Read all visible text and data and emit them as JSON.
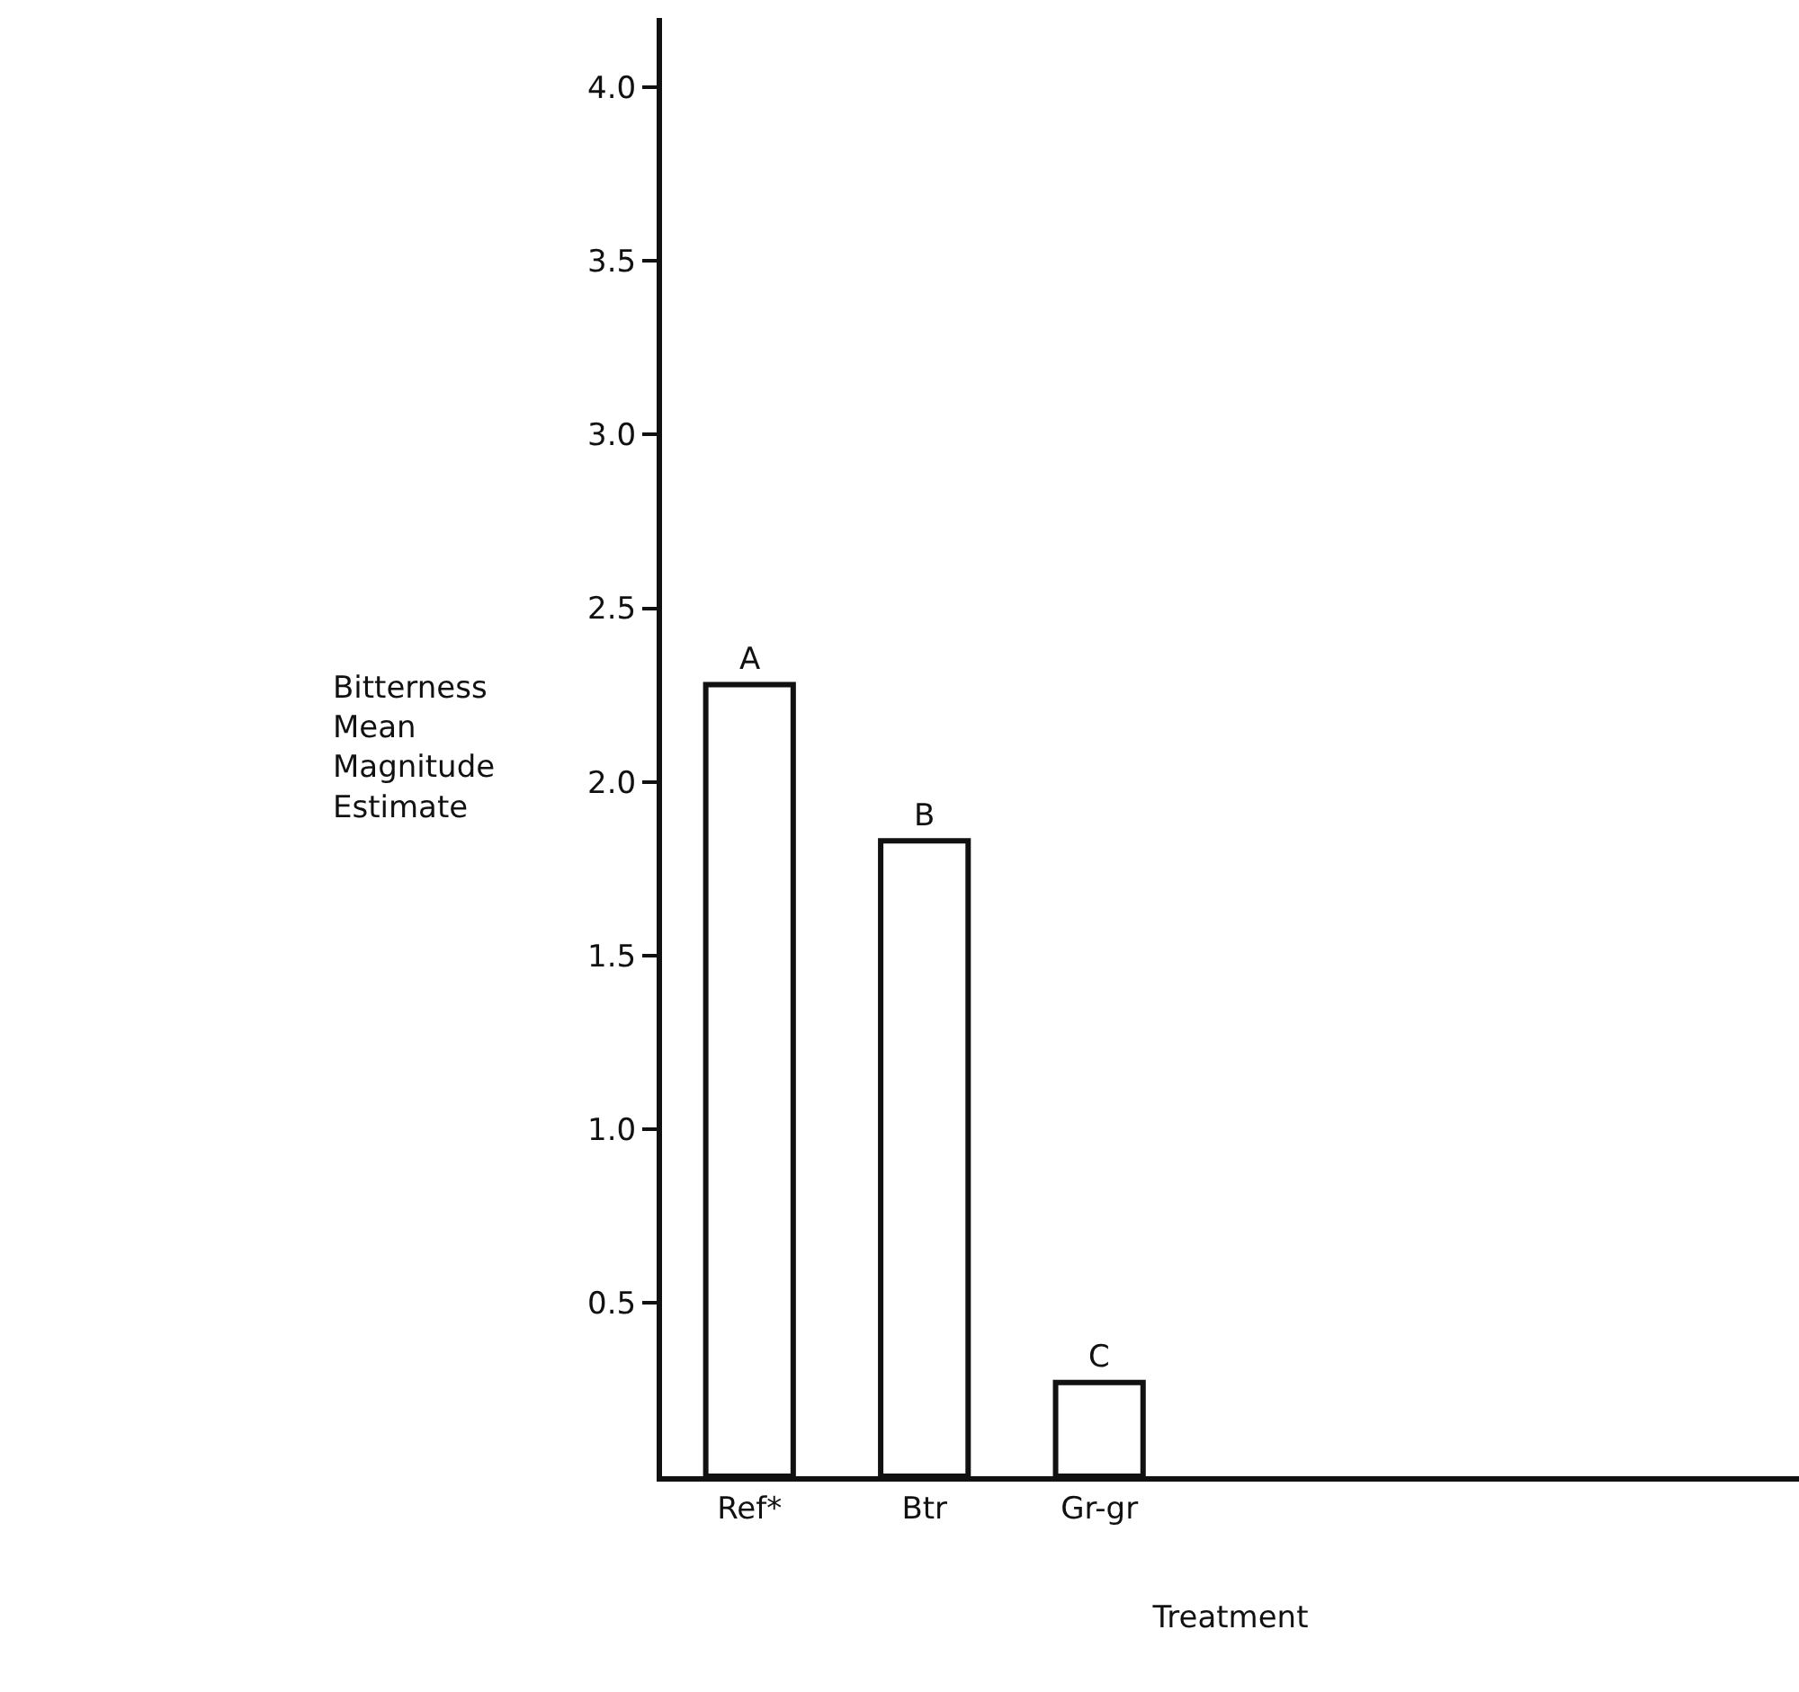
{
  "chart_data": {
    "type": "bar",
    "categories": [
      "Ref*",
      "Btr",
      "Gr-gr"
    ],
    "values": [
      2.28,
      1.83,
      0.27
    ],
    "color": "#ffffff",
    "xlabel": "Treatment",
    "ylabel": "Bitterness Mean Magnitude Estimate",
    "ylim": [
      0,
      4.2
    ],
    "yticks": [
      0.5,
      {
        "value": 1,
        "label": "1.0"
      },
      1.5,
      {
        "value": 2,
        "label": "2.0"
      },
      2.5,
      {
        "value": 3,
        "label": "3.0"
      },
      3.5,
      {
        "value": 4,
        "label": "4.0"
      }
    ],
    "annotations": [
      {
        "text": "A",
        "x": "Ref*",
        "y": 2.28
      },
      {
        "text": "B",
        "x": "Btr",
        "y": 1.83
      },
      {
        "text": "C",
        "x": "Gr-gr",
        "y": 0.27
      }
    ]
  }
}
